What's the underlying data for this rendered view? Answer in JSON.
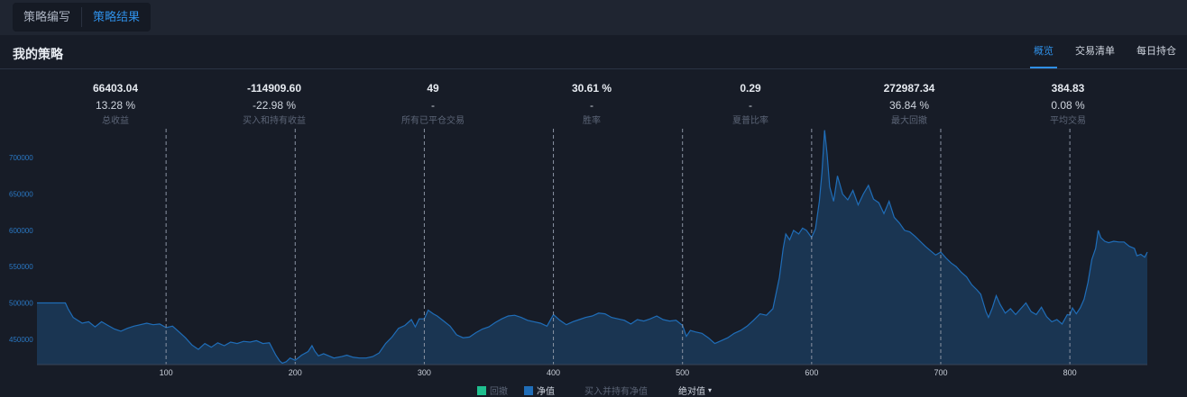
{
  "tabs": {
    "write": "策略编写",
    "result": "策略结果"
  },
  "header": {
    "title": "我的策略"
  },
  "subtabs": [
    "概览",
    "交易清单",
    "每日持仓"
  ],
  "stats": [
    {
      "value": "66403.04",
      "pct": "13.28 %",
      "label": "总收益"
    },
    {
      "value": "-114909.60",
      "pct": "-22.98 %",
      "label": "买入和持有收益"
    },
    {
      "value": "49",
      "pct": "-",
      "label": "所有已平仓交易"
    },
    {
      "value": "30.61 %",
      "pct": "-",
      "label": "胜率"
    },
    {
      "value": "0.29",
      "pct": "-",
      "label": "夏普比率"
    },
    {
      "value": "272987.34",
      "pct": "36.84 %",
      "label": "最大回撤"
    },
    {
      "value": "384.83",
      "pct": "0.08 %",
      "label": "平均交易"
    }
  ],
  "legend": {
    "drawdown": "回撤",
    "equity": "净值",
    "buyhold": "买入并持有净值",
    "mode": "绝对值",
    "mode_arrow": "▾"
  },
  "colors": {
    "accent": "#2f8fe6",
    "line": "#1f6db8",
    "fill": "#1a3552",
    "drawdown": "#1fbf8f",
    "grid": "#8a93a3"
  },
  "chart_data": {
    "type": "area",
    "series": [
      {
        "name": "净值",
        "points": [
          [
            0,
            500000
          ],
          [
            22,
            500000
          ],
          [
            24,
            492000
          ],
          [
            28,
            480000
          ],
          [
            35,
            472000
          ],
          [
            40,
            474000
          ],
          [
            45,
            467000
          ],
          [
            50,
            474000
          ],
          [
            55,
            469000
          ],
          [
            60,
            464000
          ],
          [
            65,
            461000
          ],
          [
            70,
            465000
          ],
          [
            75,
            468000
          ],
          [
            80,
            470000
          ],
          [
            85,
            472000
          ],
          [
            90,
            470000
          ],
          [
            95,
            471000
          ],
          [
            100,
            466000
          ],
          [
            105,
            468000
          ],
          [
            110,
            460000
          ],
          [
            115,
            452000
          ],
          [
            120,
            442000
          ],
          [
            125,
            436000
          ],
          [
            130,
            444000
          ],
          [
            135,
            439000
          ],
          [
            140,
            445000
          ],
          [
            145,
            441000
          ],
          [
            150,
            446000
          ],
          [
            155,
            444000
          ],
          [
            160,
            447000
          ],
          [
            165,
            446000
          ],
          [
            170,
            448000
          ],
          [
            175,
            444000
          ],
          [
            180,
            445000
          ],
          [
            185,
            428000
          ],
          [
            188,
            420000
          ],
          [
            190,
            417000
          ],
          [
            193,
            419000
          ],
          [
            196,
            424000
          ],
          [
            200,
            421000
          ],
          [
            205,
            428000
          ],
          [
            210,
            433000
          ],
          [
            213,
            441000
          ],
          [
            215,
            434000
          ],
          [
            218,
            427000
          ],
          [
            222,
            430000
          ],
          [
            226,
            427000
          ],
          [
            230,
            424000
          ],
          [
            236,
            426000
          ],
          [
            240,
            428000
          ],
          [
            245,
            425000
          ],
          [
            250,
            424000
          ],
          [
            255,
            424000
          ],
          [
            260,
            426000
          ],
          [
            265,
            431000
          ],
          [
            270,
            444000
          ],
          [
            275,
            453000
          ],
          [
            280,
            465000
          ],
          [
            285,
            469000
          ],
          [
            290,
            477000
          ],
          [
            293,
            467000
          ],
          [
            296,
            478000
          ],
          [
            300,
            478000
          ],
          [
            303,
            490000
          ],
          [
            307,
            485000
          ],
          [
            310,
            482000
          ],
          [
            315,
            475000
          ],
          [
            320,
            468000
          ],
          [
            325,
            456000
          ],
          [
            330,
            452000
          ],
          [
            335,
            453000
          ],
          [
            340,
            459000
          ],
          [
            345,
            464000
          ],
          [
            350,
            467000
          ],
          [
            355,
            473000
          ],
          [
            360,
            478000
          ],
          [
            365,
            482000
          ],
          [
            370,
            483000
          ],
          [
            375,
            480000
          ],
          [
            380,
            476000
          ],
          [
            385,
            474000
          ],
          [
            390,
            472000
          ],
          [
            395,
            468000
          ],
          [
            400,
            484000
          ],
          [
            405,
            476000
          ],
          [
            410,
            470000
          ],
          [
            415,
            474000
          ],
          [
            420,
            477000
          ],
          [
            425,
            480000
          ],
          [
            430,
            482000
          ],
          [
            435,
            486000
          ],
          [
            440,
            485000
          ],
          [
            445,
            480000
          ],
          [
            450,
            478000
          ],
          [
            455,
            476000
          ],
          [
            460,
            471000
          ],
          [
            465,
            477000
          ],
          [
            470,
            475000
          ],
          [
            475,
            478000
          ],
          [
            480,
            482000
          ],
          [
            485,
            477000
          ],
          [
            490,
            475000
          ],
          [
            495,
            476000
          ],
          [
            500,
            469000
          ],
          [
            503,
            454000
          ],
          [
            506,
            462000
          ],
          [
            510,
            460000
          ],
          [
            515,
            458000
          ],
          [
            520,
            452000
          ],
          [
            525,
            444000
          ],
          [
            530,
            448000
          ],
          [
            535,
            452000
          ],
          [
            540,
            458000
          ],
          [
            545,
            462000
          ],
          [
            550,
            468000
          ],
          [
            555,
            476000
          ],
          [
            560,
            485000
          ],
          [
            565,
            483000
          ],
          [
            570,
            492000
          ],
          [
            575,
            535000
          ],
          [
            578,
            575000
          ],
          [
            580,
            595000
          ],
          [
            583,
            587000
          ],
          [
            586,
            600000
          ],
          [
            590,
            595000
          ],
          [
            593,
            603000
          ],
          [
            596,
            600000
          ],
          [
            600,
            590000
          ],
          [
            603,
            602000
          ],
          [
            606,
            640000
          ],
          [
            608,
            680000
          ],
          [
            610,
            738000
          ],
          [
            612,
            705000
          ],
          [
            614,
            660000
          ],
          [
            617,
            640000
          ],
          [
            620,
            675000
          ],
          [
            624,
            650000
          ],
          [
            628,
            642000
          ],
          [
            632,
            655000
          ],
          [
            636,
            635000
          ],
          [
            640,
            650000
          ],
          [
            644,
            662000
          ],
          [
            648,
            643000
          ],
          [
            652,
            638000
          ],
          [
            656,
            623000
          ],
          [
            660,
            640000
          ],
          [
            664,
            618000
          ],
          [
            668,
            610000
          ],
          [
            672,
            600000
          ],
          [
            676,
            598000
          ],
          [
            680,
            592000
          ],
          [
            684,
            585000
          ],
          [
            688,
            578000
          ],
          [
            692,
            572000
          ],
          [
            696,
            566000
          ],
          [
            700,
            570000
          ],
          [
            704,
            562000
          ],
          [
            708,
            555000
          ],
          [
            712,
            550000
          ],
          [
            716,
            542000
          ],
          [
            720,
            536000
          ],
          [
            724,
            525000
          ],
          [
            728,
            518000
          ],
          [
            731,
            512000
          ],
          [
            733,
            500000
          ],
          [
            735,
            488000
          ],
          [
            737,
            480000
          ],
          [
            740,
            493000
          ],
          [
            743,
            510000
          ],
          [
            746,
            498000
          ],
          [
            750,
            486000
          ],
          [
            754,
            492000
          ],
          [
            758,
            484000
          ],
          [
            762,
            492000
          ],
          [
            766,
            500000
          ],
          [
            770,
            488000
          ],
          [
            774,
            484000
          ],
          [
            778,
            494000
          ],
          [
            782,
            481000
          ],
          [
            786,
            474000
          ],
          [
            790,
            477000
          ],
          [
            794,
            471000
          ],
          [
            798,
            484000
          ],
          [
            800,
            483000
          ],
          [
            802,
            493000
          ],
          [
            805,
            485000
          ],
          [
            808,
            493000
          ],
          [
            811,
            505000
          ],
          [
            814,
            528000
          ],
          [
            817,
            560000
          ],
          [
            820,
            575000
          ],
          [
            822,
            600000
          ],
          [
            824,
            590000
          ],
          [
            827,
            585000
          ],
          [
            830,
            583000
          ],
          [
            834,
            585000
          ],
          [
            838,
            584000
          ],
          [
            842,
            584000
          ],
          [
            846,
            578000
          ],
          [
            850,
            575000
          ],
          [
            852,
            565000
          ],
          [
            855,
            567000
          ],
          [
            858,
            563000
          ],
          [
            860,
            570000
          ]
        ]
      }
    ],
    "xticks": [
      100,
      200,
      300,
      400,
      500,
      600,
      700,
      800
    ],
    "yticks": [
      450000,
      500000,
      550000,
      600000,
      650000,
      700000
    ],
    "xlim": [
      0,
      860
    ],
    "ylim": [
      415000,
      740000
    ],
    "grid": "dashed vertical"
  }
}
